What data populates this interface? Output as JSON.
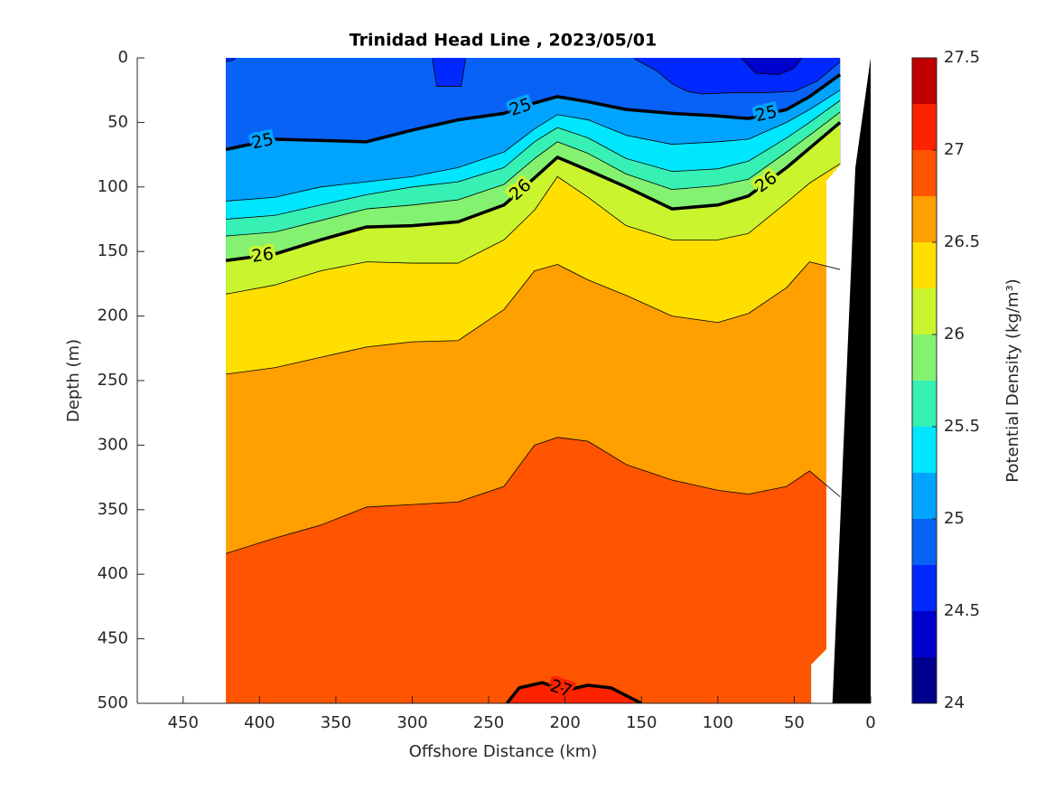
{
  "chart_data": {
    "type": "contour",
    "title": "Trinidad Head Line , 2023/05/01",
    "xlabel": "Offshore Distance (km)",
    "ylabel": "Depth (m)",
    "xlim": [
      480,
      0
    ],
    "xticks": [
      450,
      400,
      350,
      300,
      250,
      200,
      150,
      100,
      50,
      0
    ],
    "ylim": [
      0,
      500
    ],
    "yticks": [
      0,
      50,
      100,
      150,
      200,
      250,
      300,
      350,
      400,
      450,
      500
    ],
    "colorbar": {
      "label": "Potential Density (kg/m³)",
      "levels": [
        24,
        24.25,
        24.5,
        24.75,
        25,
        25.25,
        25.5,
        25.75,
        26,
        26.25,
        26.5,
        26.75,
        27,
        27.25,
        27.5
      ],
      "colors": [
        "#00008f",
        "#0000cc",
        "#0028ff",
        "#0862f6",
        "#00a4ff",
        "#00e6ff",
        "#36f0b4",
        "#84f270",
        "#caf52e",
        "#ffdf00",
        "#ff9f00",
        "#ff5400",
        "#ff2200",
        "#c00000"
      ],
      "ticks": [
        24,
        24.5,
        25,
        25.5,
        26,
        26.5,
        27,
        27.5
      ]
    },
    "coverage": {
      "x": [
        422,
        20,
        20,
        29,
        29,
        39,
        39,
        422
      ],
      "y": [
        0,
        0,
        83,
        95,
        458,
        470,
        500,
        500
      ]
    },
    "seafloor": {
      "x": [
        0,
        10,
        25
      ],
      "y": [
        0,
        85,
        500
      ],
      "color": "#000000"
    },
    "contours": [
      {
        "level": 24.5,
        "labeled": false,
        "x": [
          422,
          90,
          85,
          75,
          60,
          50,
          45,
          20
        ],
        "y": [
          0,
          0,
          0,
          12,
          13,
          8,
          0,
          0
        ]
      },
      {
        "level": 24.75,
        "labeled": false,
        "x": [
          422,
          418,
          415,
          290,
          287,
          284,
          268,
          265,
          160,
          156,
          140,
          130,
          120,
          110,
          90,
          70,
          50,
          35,
          20
        ],
        "y": [
          3,
          2,
          0,
          0,
          0,
          22,
          22,
          0,
          0,
          0,
          10,
          20,
          26,
          28,
          27,
          27,
          26,
          18,
          3
        ]
      },
      {
        "level": 25,
        "labeled": true,
        "x": [
          422,
          390,
          360,
          330,
          300,
          270,
          240,
          220,
          205,
          185,
          160,
          130,
          100,
          80,
          55,
          40,
          20
        ],
        "y": [
          71,
          63,
          64,
          65,
          56,
          48,
          43,
          35,
          30,
          34,
          40,
          43,
          45,
          47,
          40,
          30,
          13
        ]
      },
      {
        "level": 25.25,
        "labeled": false,
        "x": [
          422,
          390,
          360,
          330,
          300,
          270,
          240,
          220,
          205,
          185,
          160,
          130,
          100,
          80,
          55,
          40,
          20
        ],
        "y": [
          111,
          108,
          100,
          96,
          92,
          85,
          73,
          55,
          44,
          48,
          60,
          67,
          65,
          63,
          50,
          40,
          25
        ]
      },
      {
        "level": 25.5,
        "labeled": false,
        "x": [
          422,
          390,
          360,
          330,
          300,
          270,
          240,
          220,
          205,
          185,
          160,
          130,
          100,
          80,
          55,
          40,
          20
        ],
        "y": [
          125,
          122,
          114,
          106,
          100,
          96,
          85,
          65,
          54,
          62,
          78,
          88,
          86,
          80,
          62,
          50,
          33
        ]
      },
      {
        "level": 25.75,
        "labeled": false,
        "x": [
          422,
          390,
          360,
          330,
          300,
          270,
          240,
          220,
          205,
          185,
          160,
          130,
          100,
          80,
          55,
          40,
          20
        ],
        "y": [
          138,
          135,
          126,
          117,
          114,
          110,
          98,
          78,
          65,
          74,
          90,
          102,
          99,
          94,
          73,
          60,
          42
        ]
      },
      {
        "level": 26,
        "labeled": true,
        "x": [
          422,
          390,
          360,
          330,
          300,
          270,
          240,
          220,
          205,
          185,
          160,
          130,
          100,
          80,
          55,
          40,
          20
        ],
        "y": [
          157,
          152,
          141,
          131,
          130,
          127,
          114,
          93,
          77,
          87,
          100,
          117,
          114,
          107,
          85,
          70,
          50
        ]
      },
      {
        "level": 26.25,
        "labeled": false,
        "x": [
          422,
          390,
          360,
          330,
          300,
          270,
          240,
          220,
          205,
          185,
          160,
          130,
          100,
          80,
          55,
          40,
          20
        ],
        "y": [
          183,
          176,
          165,
          158,
          159,
          159,
          141,
          118,
          92,
          108,
          130,
          141,
          141,
          136,
          112,
          97,
          82
        ]
      },
      {
        "level": 26.5,
        "labeled": false,
        "x": [
          422,
          390,
          360,
          330,
          300,
          270,
          240,
          220,
          205,
          185,
          160,
          130,
          100,
          80,
          55,
          40,
          20
        ],
        "y": [
          245,
          240,
          232,
          224,
          220,
          219,
          195,
          165,
          160,
          172,
          184,
          200,
          205,
          198,
          178,
          158,
          164
        ]
      },
      {
        "level": 26.75,
        "labeled": false,
        "x": [
          422,
          390,
          360,
          330,
          300,
          270,
          240,
          220,
          205,
          185,
          160,
          130,
          100,
          80,
          55,
          40,
          20
        ],
        "y": [
          384,
          372,
          362,
          348,
          346,
          344,
          332,
          300,
          294,
          297,
          315,
          327,
          335,
          338,
          332,
          320,
          340
        ]
      },
      {
        "level": 27,
        "labeled": true,
        "x": [
          238,
          230,
          215,
          200,
          185,
          170,
          150
        ],
        "y": [
          500,
          488,
          484,
          490,
          486,
          488,
          500
        ]
      }
    ]
  }
}
